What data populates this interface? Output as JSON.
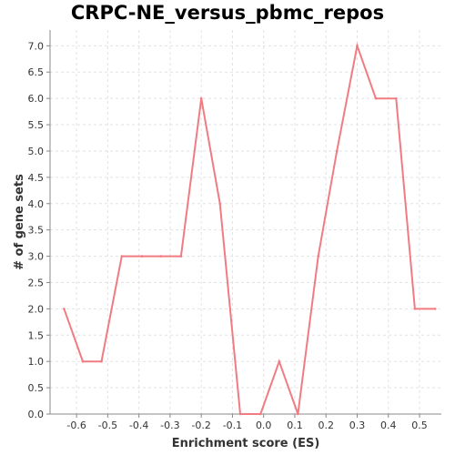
{
  "chart_data": {
    "type": "line",
    "title": "CRPC-NE_versus_pbmc_repos",
    "xlabel": "Enrichment score (ES)",
    "ylabel": "# of gene sets",
    "xlim": [
      -0.685,
      0.57
    ],
    "ylim": [
      0,
      7.3
    ],
    "x_ticks": [
      -0.6,
      -0.5,
      -0.4,
      -0.3,
      -0.2,
      -0.1,
      0.0,
      0.1,
      0.2,
      0.3,
      0.4,
      0.5
    ],
    "x_tick_labels": [
      "-0.6",
      "-0.5",
      "-0.4",
      "-0.3",
      "-0.2",
      "-0.1",
      "0.0",
      "0.1",
      "0.2",
      "0.3",
      "0.4",
      "0.5"
    ],
    "y_ticks": [
      0,
      0.5,
      1,
      1.5,
      2,
      2.5,
      3,
      3.5,
      4,
      4.5,
      5,
      5.5,
      6,
      6.5,
      7
    ],
    "y_tick_labels": [
      "0.0",
      "0.5",
      "1.0",
      "1.5",
      "2.0",
      "2.5",
      "3.0",
      "3.5",
      "4.0",
      "4.5",
      "5.0",
      "5.5",
      "6.0",
      "6.5",
      "7.0"
    ],
    "grid": true,
    "series": [
      {
        "color": "#f07c82",
        "x": [
          -0.64,
          -0.58,
          -0.52,
          -0.455,
          -0.39,
          -0.33,
          -0.265,
          -0.2,
          -0.14,
          -0.075,
          -0.01,
          0.05,
          0.11,
          0.175,
          0.235,
          0.3,
          0.36,
          0.425,
          0.485,
          0.55
        ],
        "y": [
          2,
          1,
          1,
          3,
          3,
          3,
          3,
          6,
          4,
          0,
          0,
          1,
          0,
          3,
          5,
          7,
          6,
          6,
          2,
          2
        ]
      }
    ]
  }
}
